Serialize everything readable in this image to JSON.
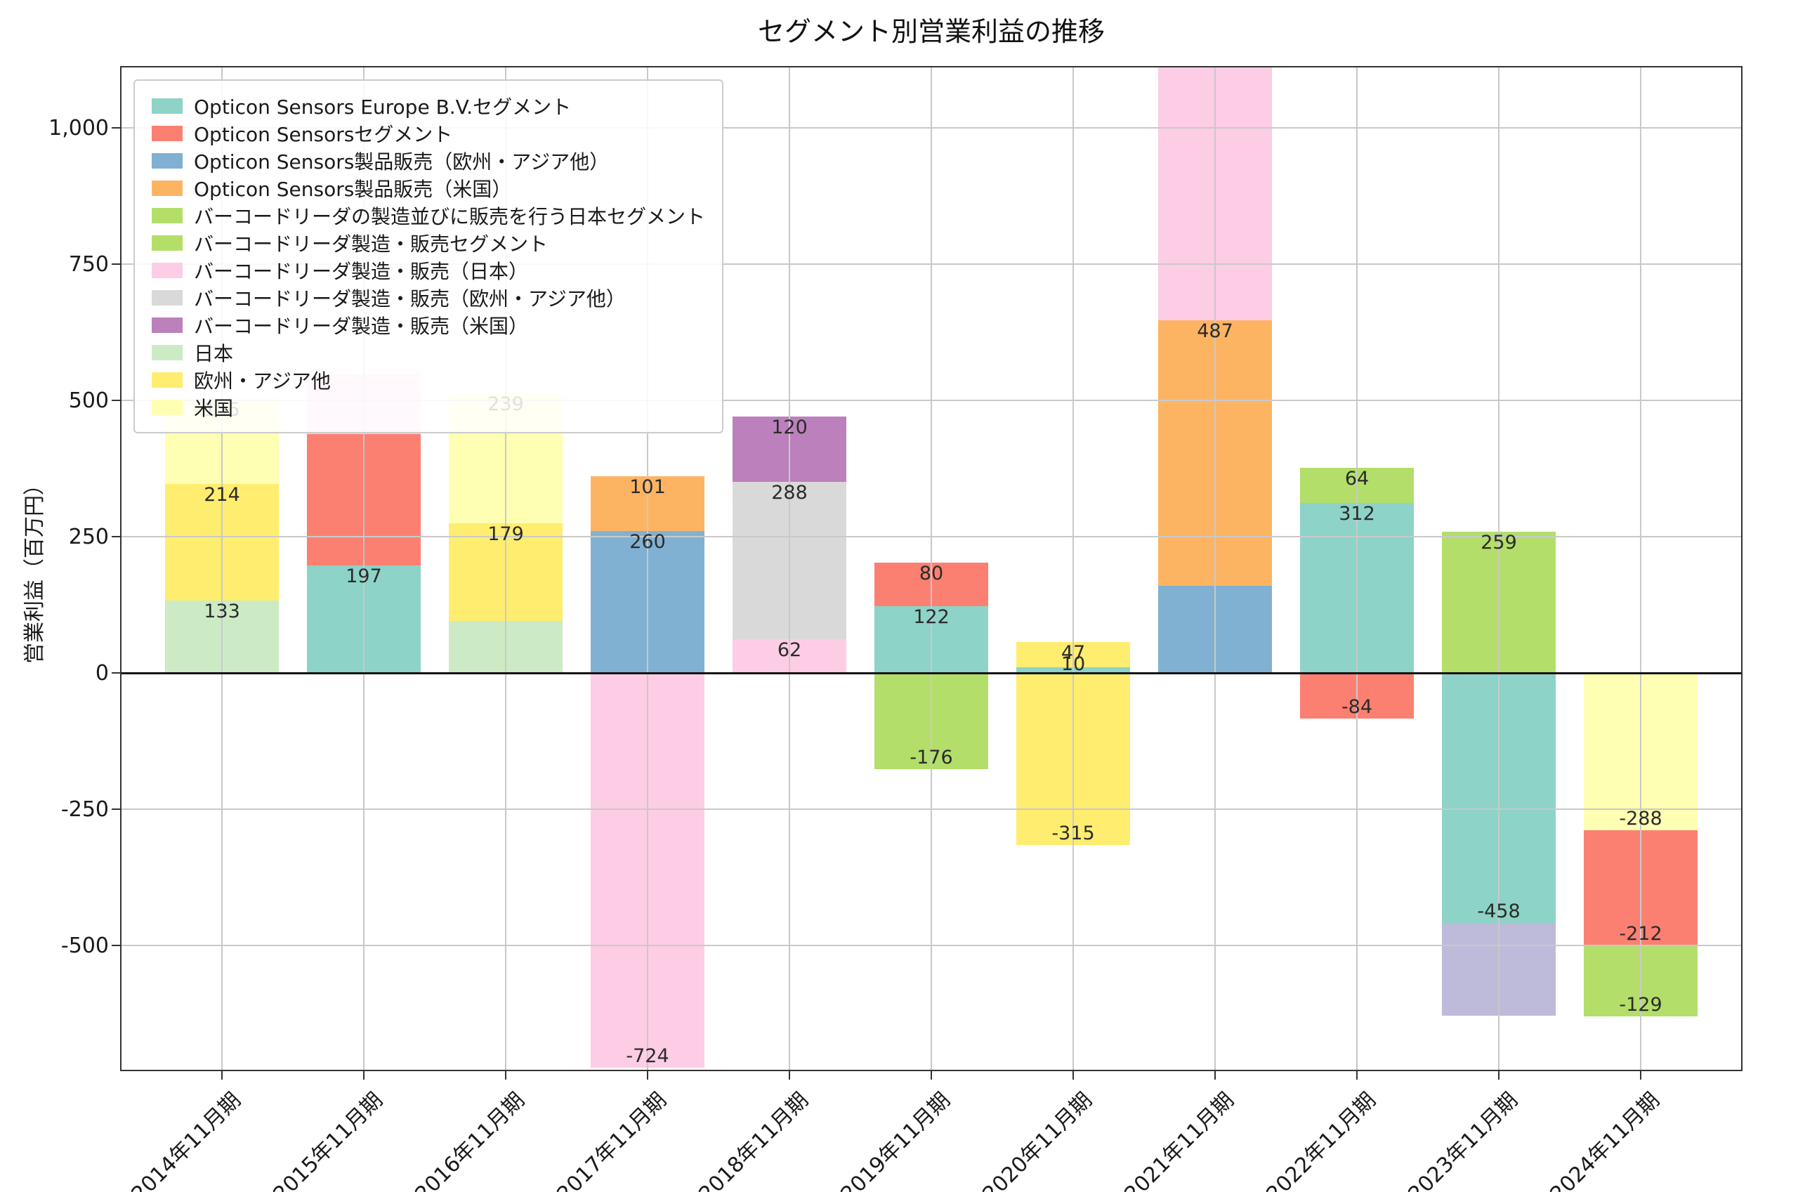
{
  "chart_data": {
    "type": "bar",
    "stacked": true,
    "title": "セグメント別営業利益の推移",
    "ylabel": "営業利益（百万円）",
    "xlabel": "",
    "grid": true,
    "legend_position": "upper left",
    "ylim": [
      -730,
      1113
    ],
    "yticks": [
      {
        "value": 1000,
        "label": "1,000"
      },
      {
        "value": 750,
        "label": "750"
      },
      {
        "value": 500,
        "label": "500"
      },
      {
        "value": 250,
        "label": "250"
      },
      {
        "value": 0,
        "label": "0"
      },
      {
        "value": -250,
        "label": "-250"
      },
      {
        "value": -500,
        "label": "-500"
      }
    ],
    "legend": [
      {
        "label": "Opticon Sensors Europe B.V.セグメント",
        "color": "#8DD3C7"
      },
      {
        "label": "Opticon Sensorsセグメント",
        "color": "#FB8072"
      },
      {
        "label": "Opticon Sensors製品販売（欧州・アジア他）",
        "color": "#80B1D3"
      },
      {
        "label": "Opticon Sensors製品販売（米国）",
        "color": "#FDB462"
      },
      {
        "label": "バーコードリーダの製造並びに販売を行う日本セグメント",
        "color": "#B3DE69"
      },
      {
        "label": "バーコードリーダ製造・販売セグメント",
        "color": "#B3DE69"
      },
      {
        "label": "バーコードリーダ製造・販売（日本）",
        "color": "#FCCDE5"
      },
      {
        "label": "バーコードリーダ製造・販売（欧州・アジア他）",
        "color": "#D9D9D9"
      },
      {
        "label": "バーコードリーダ製造・販売（米国）",
        "color": "#BC80BD"
      },
      {
        "label": "日本",
        "color": "#CCEBC5"
      },
      {
        "label": "欧州・アジア他",
        "color": "#FFED6F"
      },
      {
        "label": "米国",
        "color": "#FFFFB3"
      }
    ],
    "categories": [
      "2014年11月期",
      "2015年11月期",
      "2016年11月期",
      "2017年11月期",
      "2018年11月期",
      "2019年11月期",
      "2020年11月期",
      "2021年11月期",
      "2022年11月期",
      "2023年11月期",
      "2024年11月期"
    ],
    "bars": [
      {
        "category": "2014年11月期",
        "segments": [
          {
            "color": "#CCEBC5",
            "value": 133,
            "label": "133"
          },
          {
            "color": "#FFED6F",
            "value": 214,
            "label": "214"
          },
          {
            "color": "#FFFFB3",
            "value": 155,
            "label": "155"
          }
        ]
      },
      {
        "category": "2015年11月期",
        "segments": [
          {
            "color": "#8DD3C7",
            "value": 197,
            "label": "197"
          },
          {
            "color": "#FB8072",
            "value": 241,
            "label": ""
          },
          {
            "color": "#FCCDE5",
            "value": 109,
            "label": ""
          }
        ]
      },
      {
        "category": "2016年11月期",
        "segments": [
          {
            "color": "#CCEBC5",
            "value": 95,
            "label": ""
          },
          {
            "color": "#FFED6F",
            "value": 179,
            "label": "179"
          },
          {
            "color": "#FFFFB3",
            "value": 239,
            "label": "239"
          }
        ]
      },
      {
        "category": "2017年11月期",
        "segments": [
          {
            "color": "#80B1D3",
            "value": 260,
            "label": "260"
          },
          {
            "color": "#FDB462",
            "value": 101,
            "label": "101"
          },
          {
            "color": "#FCCDE5",
            "value": -724,
            "label": "-724"
          }
        ]
      },
      {
        "category": "2018年11月期",
        "segments": [
          {
            "color": "#FCCDE5",
            "value": 62,
            "label": "62"
          },
          {
            "color": "#D9D9D9",
            "value": 288,
            "label": "288"
          },
          {
            "color": "#BC80BD",
            "value": 120,
            "label": "120"
          }
        ]
      },
      {
        "category": "2019年11月期",
        "segments": [
          {
            "color": "#8DD3C7",
            "value": 122,
            "label": "122"
          },
          {
            "color": "#FB8072",
            "value": 80,
            "label": "80"
          },
          {
            "color": "#B3DE69",
            "value": -176,
            "label": "-176"
          }
        ]
      },
      {
        "category": "2020年11月期",
        "segments": [
          {
            "color": "#8DD3C7",
            "value": 10,
            "label": "10"
          },
          {
            "color": "#FFED6F",
            "value": 47,
            "label": "47"
          },
          {
            "color": "#FFED6F",
            "value": -315,
            "label": "-315"
          }
        ]
      },
      {
        "category": "2021年11月期",
        "segments": [
          {
            "color": "#80B1D3",
            "value": 160,
            "label": ""
          },
          {
            "color": "#FDB462",
            "value": 487,
            "label": "487"
          },
          {
            "color": "#FCCDE5",
            "value": null,
            "clipped_top": true,
            "label": ""
          }
        ]
      },
      {
        "category": "2022年11月期",
        "segments": [
          {
            "color": "#8DD3C7",
            "value": 312,
            "label": "312"
          },
          {
            "color": "#B3DE69",
            "value": 64,
            "label": "64"
          },
          {
            "color": "#FB8072",
            "value": -84,
            "label": "-84"
          }
        ]
      },
      {
        "category": "2023年11月期",
        "segments": [
          {
            "color": "#B3DE69",
            "value": 259,
            "label": "259"
          },
          {
            "color": "#8DD3C7",
            "value": -458,
            "label": "-458"
          },
          {
            "color": "#BEBADA",
            "value": -170,
            "label": ""
          }
        ]
      },
      {
        "category": "2024年11月期",
        "segments": [
          {
            "color": "#FFFFB3",
            "value": -288,
            "label": "-288"
          },
          {
            "color": "#FB8072",
            "value": -212,
            "label": "-212"
          },
          {
            "color": "#B3DE69",
            "value": -129,
            "label": "-129"
          }
        ]
      }
    ]
  }
}
